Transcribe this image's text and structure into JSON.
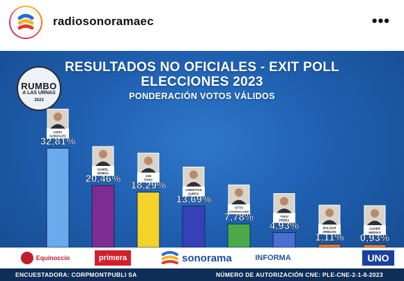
{
  "post": {
    "username": "radiosonoramaec",
    "more_icon": "more-horizontal-icon",
    "more_label": "•••"
  },
  "graphic": {
    "title_line1": "RESULTADOS NO OFICIALES - EXIT POLL",
    "title_line2": "ELECCIONES 2023",
    "subtitle": "PONDERACIÓN VOTOS VÁLIDOS",
    "badge_line1": "RUMBO",
    "badge_line2": "A LAS URNAS",
    "badge_line3": "2023",
    "footer_left": "ENCUESTADORA: CORPMONTPUBLI SA",
    "footer_right": "NÚMERO DE AUTORIZACIÓN CNE: PLE-CNE-2-1-8-2023",
    "logos": [
      "Equinoccio",
      "primera",
      "sonorama",
      "INFORMA",
      "UNO"
    ]
  },
  "chart_data": {
    "type": "bar",
    "categories": [
      "LUISA GONZÁLEZ",
      "DANIEL NOBOA",
      "JAN TOPIC",
      "CHRISTIAN ZURITA",
      "OTTO SONNENHOLZNER",
      "YAKU PÉREZ",
      "BOLÍVAR ARMIJOS",
      "XAVIER HERVAS"
    ],
    "values": [
      32.81,
      20.46,
      18.29,
      13.69,
      7.78,
      4.93,
      1.11,
      0.93
    ],
    "labels": [
      "32,81%",
      "20,46%",
      "18,29%",
      "13,69%",
      "7,78%",
      "4,93%",
      "1,11%",
      "0,93%"
    ],
    "colors": [
      "#6aa9ec",
      "#7e2c93",
      "#f3d22b",
      "#3640b7",
      "#4aaa4a",
      "#4a6fd0",
      "#e37a2e",
      "#f18a2a"
    ],
    "ylim": [
      0,
      35
    ]
  },
  "colors": {
    "background": "#1f5fb0",
    "footer": "#0f2e57"
  }
}
